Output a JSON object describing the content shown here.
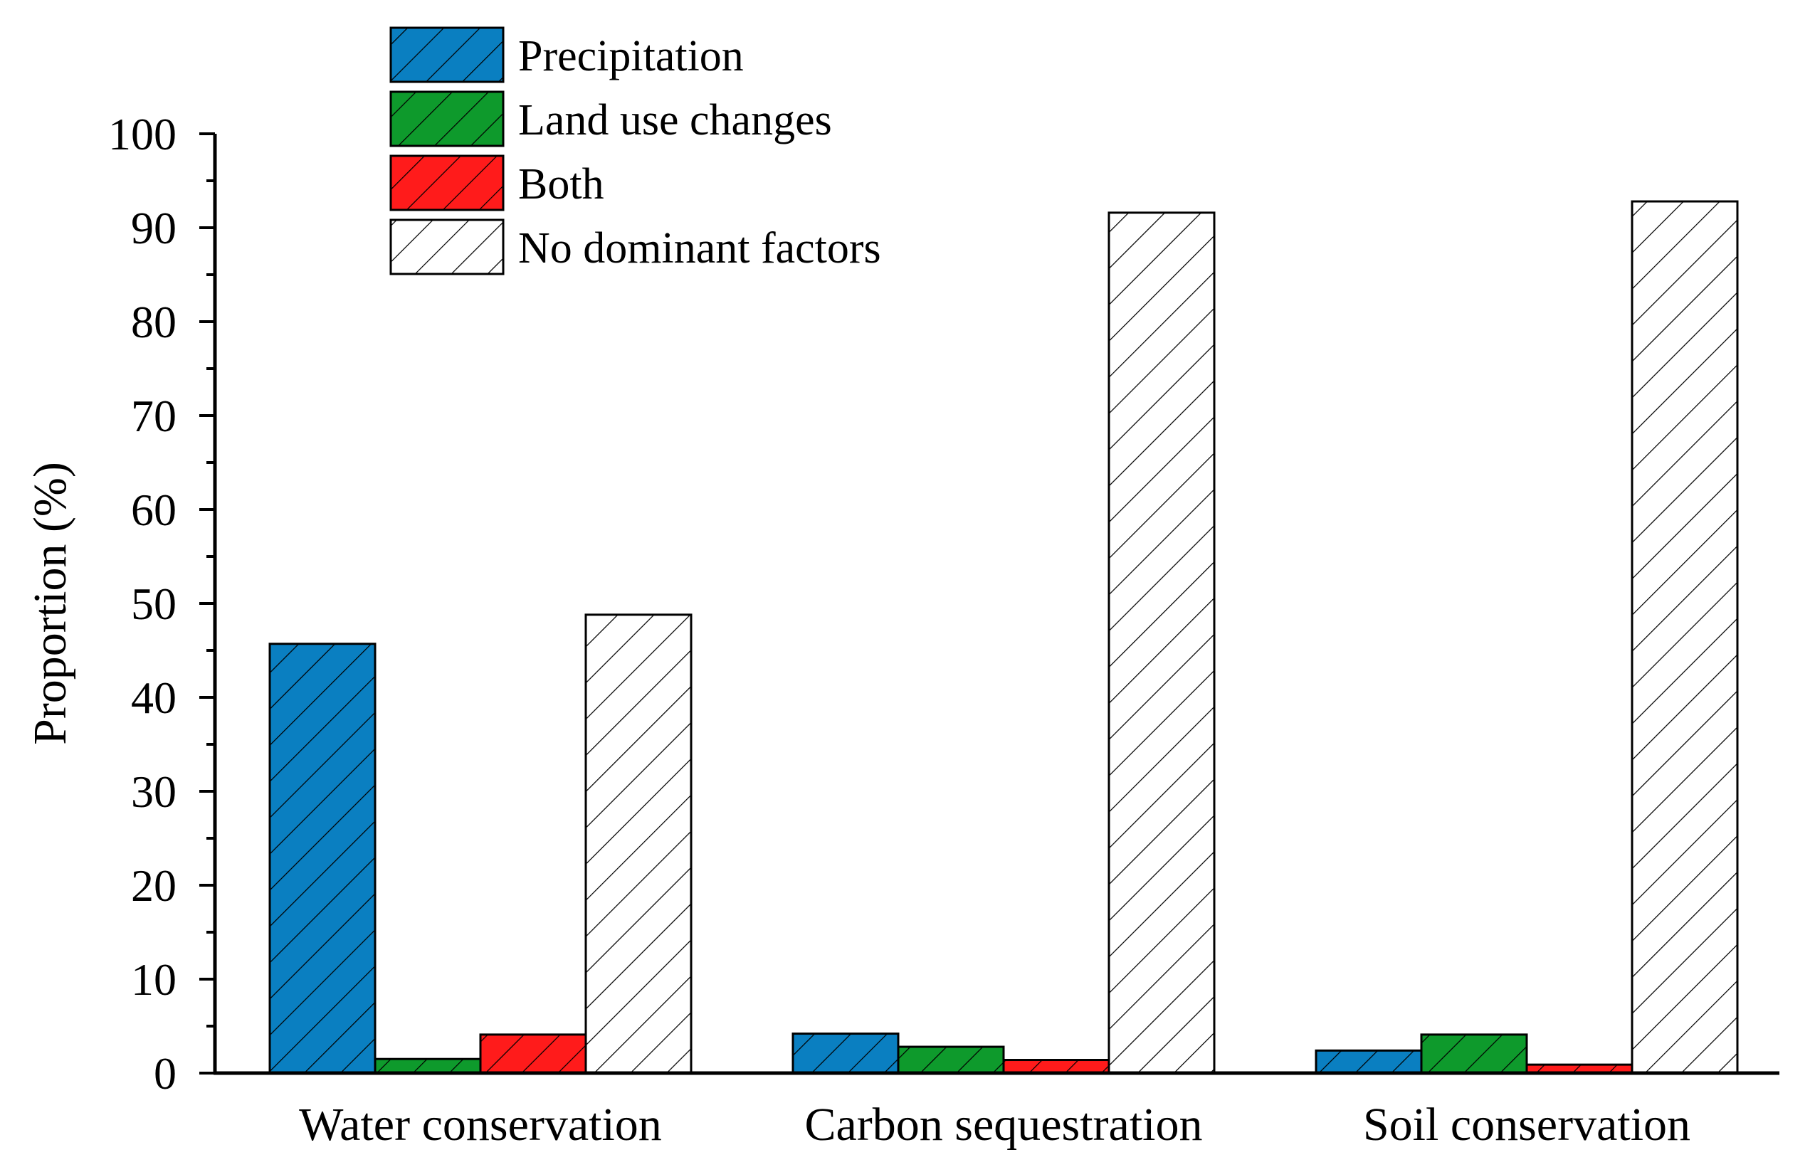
{
  "chart_data": {
    "type": "bar",
    "title": "",
    "xlabel": "",
    "ylabel": "Proportion (%)",
    "ylim": [
      0,
      100
    ],
    "yticks": [
      "0",
      "10",
      "20",
      "30",
      "40",
      "50",
      "60",
      "70",
      "80",
      "90",
      "100"
    ],
    "grid": false,
    "legend_position": "top-left",
    "categories": [
      "Water conservation",
      "Carbon sequestration",
      "Soil conservation"
    ],
    "series": [
      {
        "name": "Precipitation",
        "color": "#0a7fc1",
        "hatch": "diagonal",
        "values": [
          45.7,
          4.2,
          2.4
        ]
      },
      {
        "name": "Land use changes",
        "color": "#0e9a2c",
        "hatch": "diagonal",
        "values": [
          1.5,
          2.8,
          4.1
        ]
      },
      {
        "name": "Both",
        "color": "#ff1b1b",
        "hatch": "diagonal",
        "values": [
          4.1,
          1.4,
          0.9
        ]
      },
      {
        "name": "No dominant factors",
        "color": "#ffffff",
        "hatch": "diagonal",
        "values": [
          48.8,
          91.6,
          92.8
        ]
      }
    ]
  }
}
